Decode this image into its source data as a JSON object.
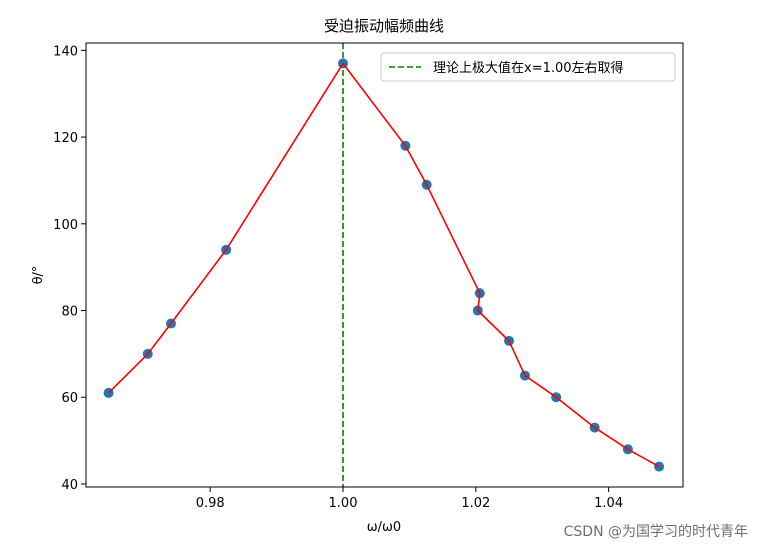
{
  "chart_data": {
    "type": "scatter",
    "title": "受迫振动幅频曲线",
    "xlabel": "ω/ω0",
    "ylabel": "θ/°",
    "xlim": [
      0.9613,
      1.0512
    ],
    "ylim": [
      39.3,
      141.7
    ],
    "xticks": [
      0.98,
      1.0,
      1.02,
      1.04
    ],
    "xtick_labels": [
      "0.98",
      "1.00",
      "1.02",
      "1.04"
    ],
    "yticks": [
      40,
      60,
      80,
      100,
      120,
      140
    ],
    "ytick_labels": [
      "40",
      "60",
      "80",
      "100",
      "120",
      "140"
    ],
    "grid": false,
    "legend": {
      "placement": "top-right",
      "entries": [
        {
          "label": "理论上极大值在x=1.00左右取得",
          "style": "dashed",
          "color": "#008000"
        }
      ]
    },
    "vline": {
      "x": 1.0,
      "color": "#008000",
      "style": "dashed"
    },
    "series": [
      {
        "marker_color": "#1f77b4",
        "line_color": "#ff0000",
        "x": [
          0.9647,
          0.9706,
          0.9741,
          0.9824,
          1.0,
          1.0094,
          1.0126,
          1.0206,
          1.0203,
          1.025,
          1.0274,
          1.0321,
          1.0379,
          1.0429,
          1.0476
        ],
        "y": [
          61,
          70,
          77,
          94,
          137,
          118,
          109,
          84,
          80,
          73,
          65,
          60,
          53,
          48,
          44
        ]
      }
    ]
  },
  "watermark": "CSDN @为国学习的时代青年"
}
